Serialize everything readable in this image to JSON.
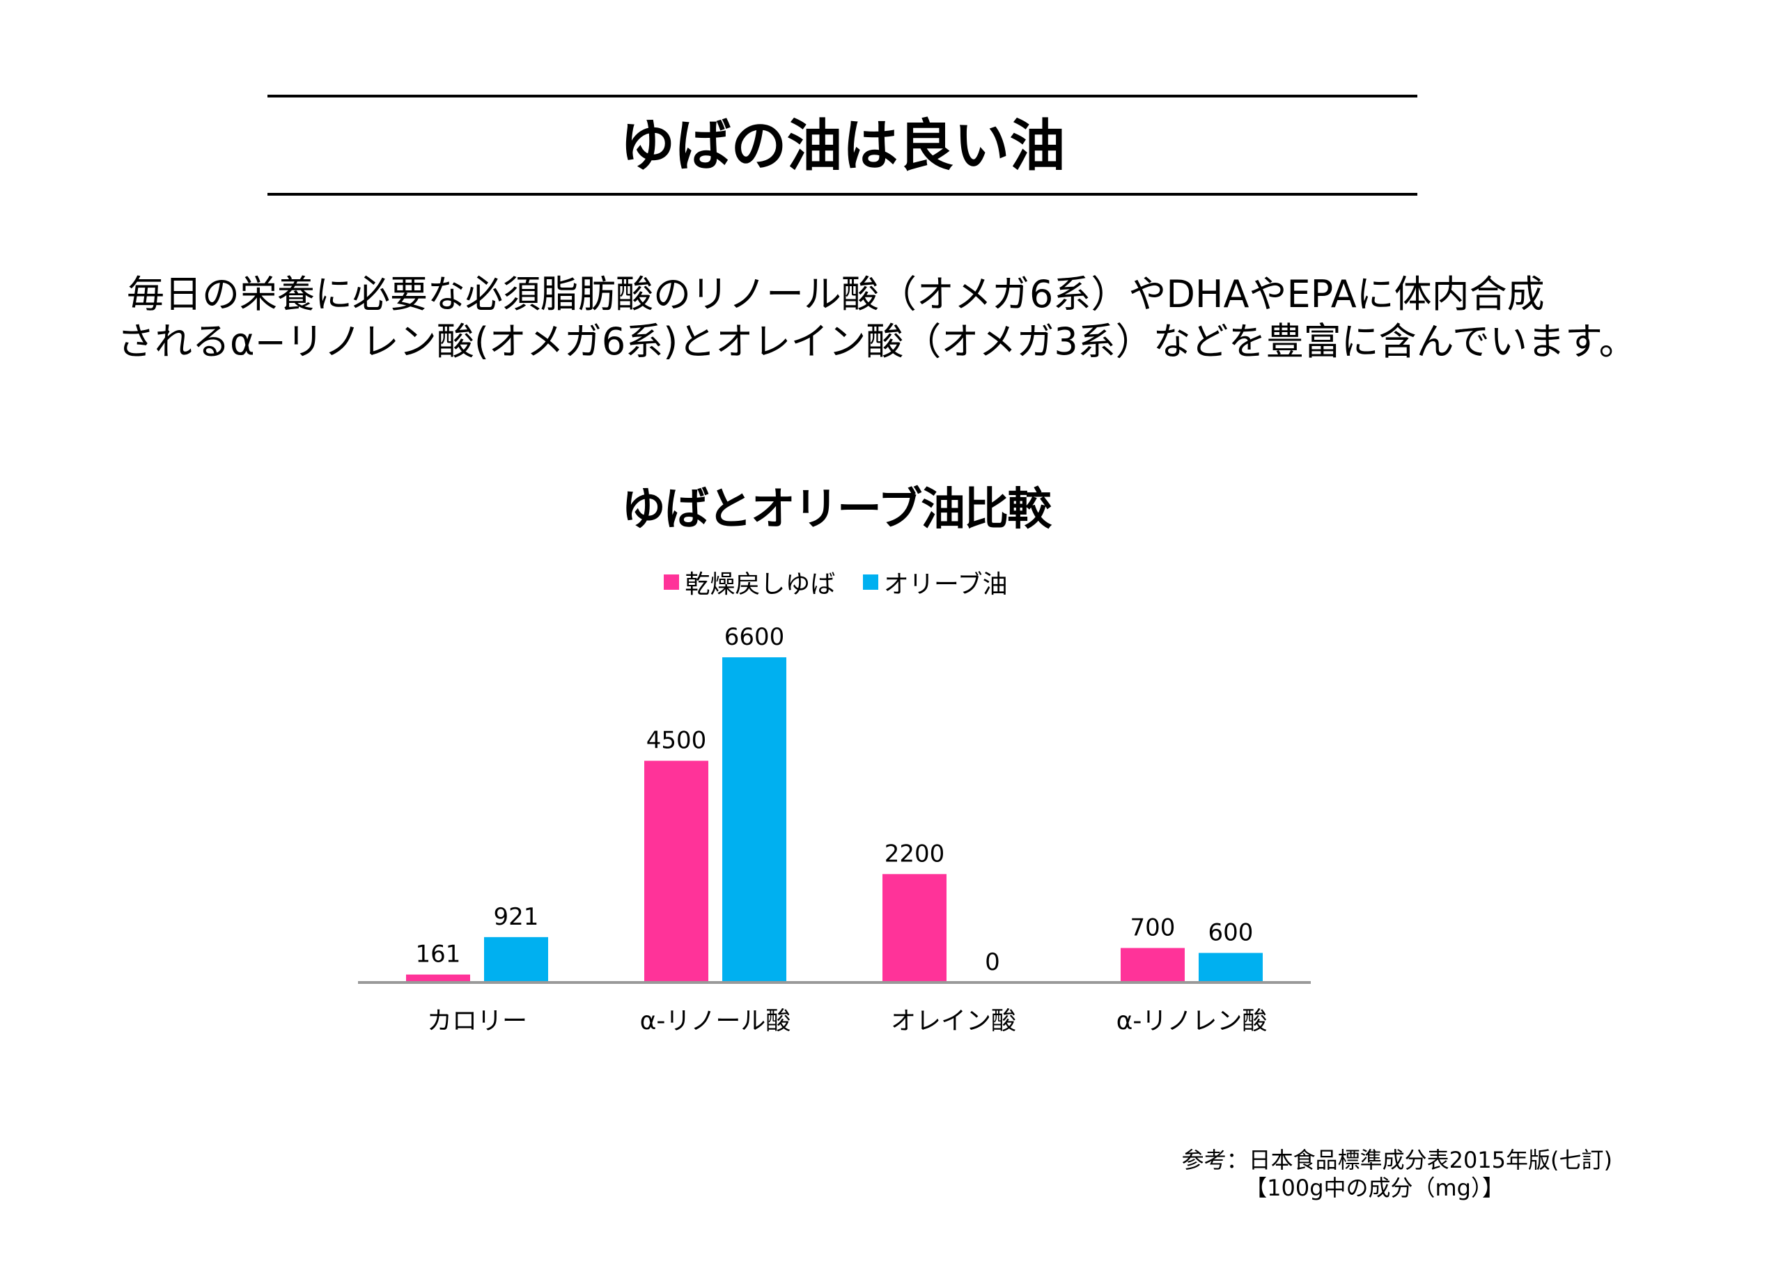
{
  "title": "ゆばの油は良い油",
  "paragraph": {
    "line1": "毎日の栄養に必要な必須脂肪酸のリノール酸（オメガ6系）やDHAやEPAに体内合成",
    "line2": "されるα−リノレン酸(オメガ6系)とオレイン酸（オメガ3系）などを豊富に含んでいます。"
  },
  "source": {
    "line1": "参考：日本食品標準成分表2015年版(七訂)",
    "line2": "【100g中の成分（mg）】"
  },
  "chart_data": {
    "type": "bar",
    "title": "ゆばとオリーブ油比較",
    "categories": [
      "カロリー",
      "α-リノール酸",
      "オレイン酸",
      "α-リノレン酸"
    ],
    "series": [
      {
        "name": "乾燥戻しゆば",
        "color": "#ff3399",
        "values": [
          161,
          4500,
          2200,
          700
        ]
      },
      {
        "name": "オリーブ油",
        "color": "#00b0f0",
        "values": [
          921,
          6600,
          0,
          600
        ]
      }
    ],
    "ylim": [
      0,
      6600
    ],
    "legend": "top",
    "grid": false,
    "data_labels": true,
    "axis_color": "#999999"
  }
}
